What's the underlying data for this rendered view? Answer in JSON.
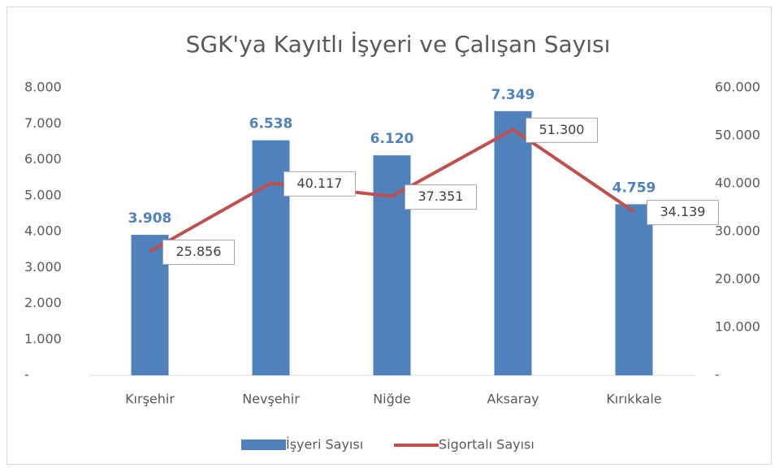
{
  "chart_data": {
    "type": "bar-line",
    "title": "SGK'ya Kayıtlı İşyeri ve Çalışan Sayısı",
    "categories": [
      "Kırşehir",
      "Nevşehir",
      "Niğde",
      "Aksaray",
      "Kırıkkale"
    ],
    "series": [
      {
        "name": "İşyeri Sayısı",
        "type": "bar",
        "color": "#4f81bd",
        "values": [
          3908,
          6538,
          6120,
          7349,
          4759
        ],
        "value_labels": [
          "3.908",
          "6.538",
          "6.120",
          "7.349",
          "4.759"
        ]
      },
      {
        "name": "Sigortalı Sayısı",
        "type": "line",
        "axis": "y2",
        "color": "#c0504d",
        "values": [
          25856,
          40117,
          37351,
          51300,
          34139
        ],
        "value_labels": [
          "25.856",
          "40.117",
          "37.351",
          "51.300",
          "34.139"
        ]
      }
    ],
    "ylim": [
      0,
      8000
    ],
    "yticks": [
      {
        "value": 0,
        "label": "-"
      },
      {
        "value": 1000,
        "label": "1.000"
      },
      {
        "value": 2000,
        "label": "2.000"
      },
      {
        "value": 3000,
        "label": "3.000"
      },
      {
        "value": 4000,
        "label": "4.000"
      },
      {
        "value": 5000,
        "label": "5.000"
      },
      {
        "value": 6000,
        "label": "6.000"
      },
      {
        "value": 7000,
        "label": "7.000"
      },
      {
        "value": 8000,
        "label": "8.000"
      }
    ],
    "y2lim": [
      0,
      60000
    ],
    "y2ticks": [
      {
        "value": 0,
        "label": "-"
      },
      {
        "value": 10000,
        "label": "10.000"
      },
      {
        "value": 20000,
        "label": "20.000"
      },
      {
        "value": 30000,
        "label": "30.000"
      },
      {
        "value": 40000,
        "label": "40.000"
      },
      {
        "value": 50000,
        "label": "50.000"
      },
      {
        "value": 60000,
        "label": "60.000"
      }
    ],
    "legend": "bottom"
  }
}
